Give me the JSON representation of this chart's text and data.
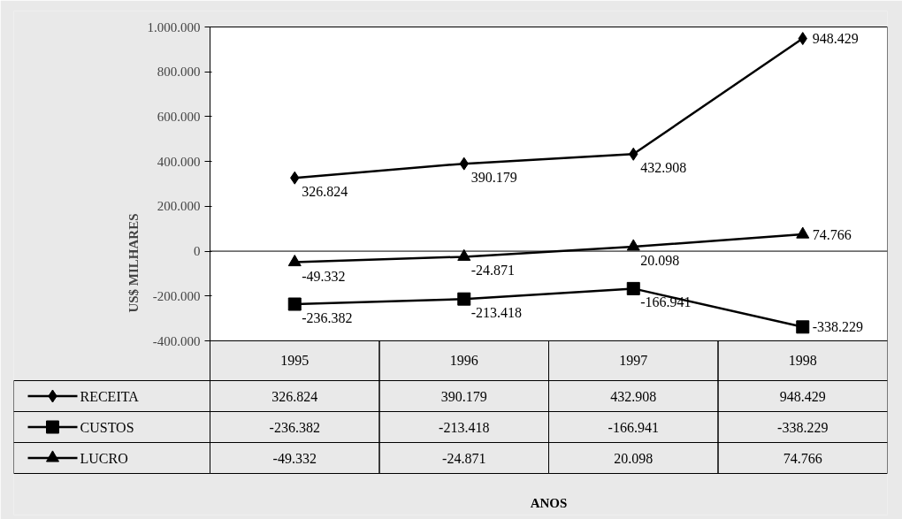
{
  "chart_data": {
    "type": "line",
    "ylabel": "US$ MILHARES",
    "annotations": [
      "ANOS"
    ],
    "categories": [
      "1995",
      "1996",
      "1997",
      "1998"
    ],
    "series": [
      {
        "name": "RECEITA",
        "color": "#000000",
        "marker": "diamond",
        "values": [
          326824,
          390179,
          432908,
          948429
        ],
        "value_labels": [
          "326.824",
          "390.179",
          "432.908",
          "948.429"
        ]
      },
      {
        "name": "CUSTOS",
        "color": "#000000",
        "marker": "square",
        "values": [
          -236382,
          -213418,
          -166941,
          -338229
        ],
        "value_labels": [
          "-236.382",
          "-213.418",
          "-166.941",
          "-338.229"
        ]
      },
      {
        "name": "LUCRO",
        "color": "#000000",
        "marker": "triangle",
        "values": [
          -49332,
          -24871,
          20098,
          74766
        ],
        "value_labels": [
          "-49.332",
          "-24.871",
          "20.098",
          "74.766"
        ]
      }
    ],
    "ylim": [
      -400000,
      1000000
    ],
    "yticks": [
      {
        "value": -400000,
        "label": "-400.000"
      },
      {
        "value": -200000,
        "label": "-200.000"
      },
      {
        "value": 0,
        "label": "0"
      },
      {
        "value": 200000,
        "label": "200.000"
      },
      {
        "value": 400000,
        "label": "400.000"
      },
      {
        "value": 600000,
        "label": "600.000"
      },
      {
        "value": 800000,
        "label": "800.000"
      },
      {
        "value": 1000000,
        "label": "1.000.000"
      }
    ],
    "ref_lines": [
      {
        "axis": "y",
        "value": 0,
        "color": "#000000"
      }
    ],
    "grid": false,
    "legend": "bottom",
    "line_style": "solid"
  }
}
